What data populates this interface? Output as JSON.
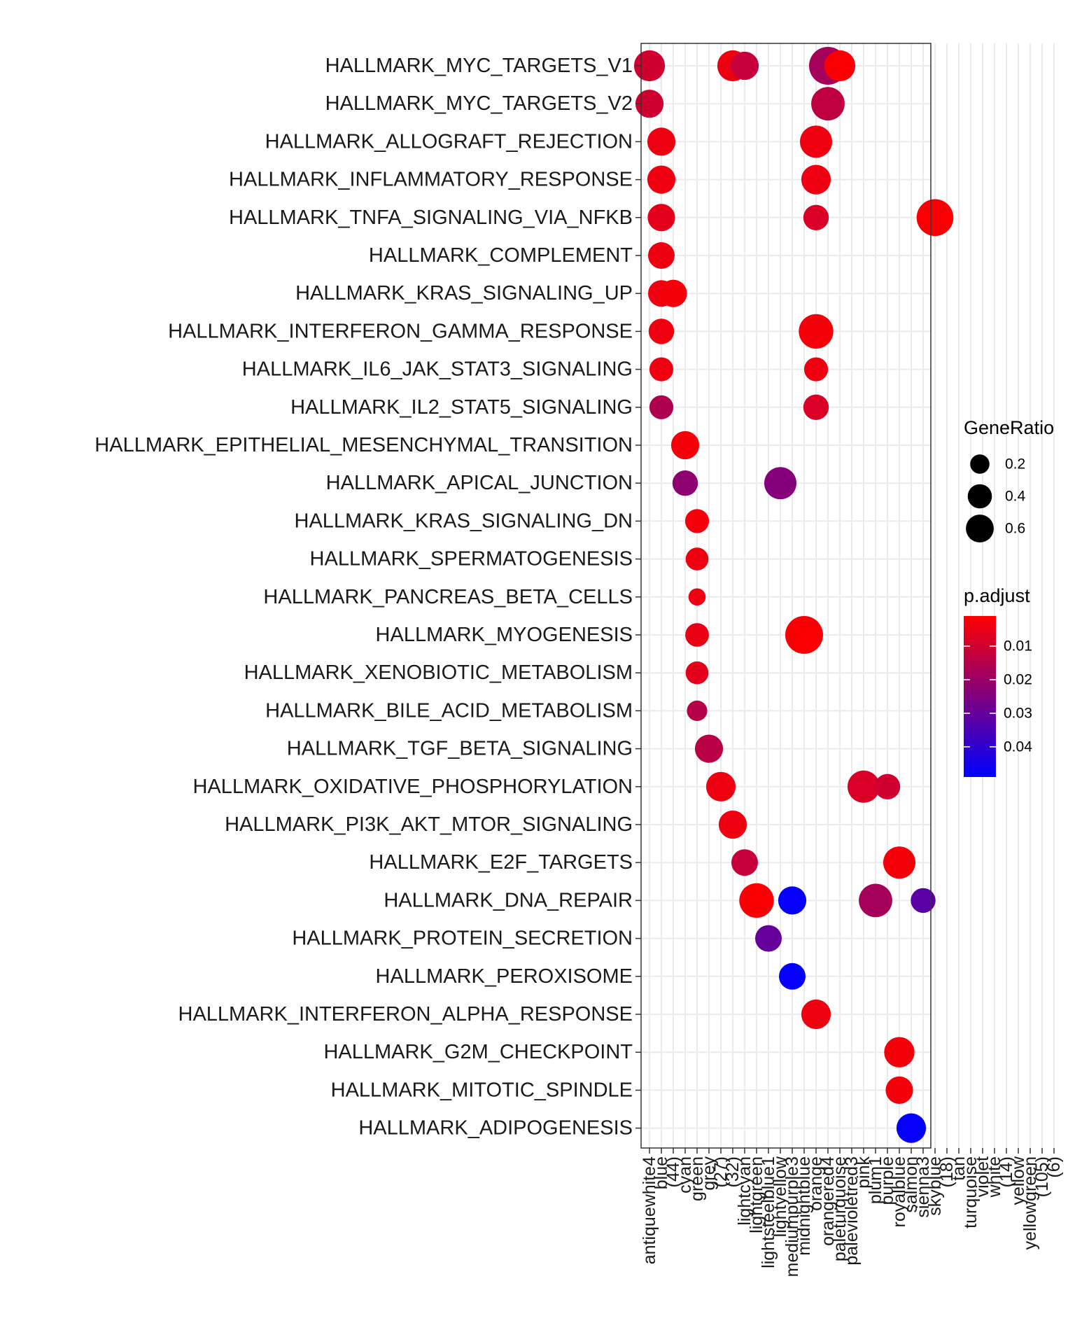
{
  "chart_data": {
    "type": "scatter",
    "title": "",
    "xlabel": "",
    "ylabel": "",
    "grid": true,
    "legend_position": "right",
    "x_categories": [
      "antiquewhite4",
      "blue",
      "(44)",
      "cyan",
      "green",
      "grey",
      "(27)",
      "(32)",
      "lightcyan",
      "lightgreen",
      "lightsteelblue1",
      "lightyellow",
      "mediumpurple3",
      "midnightblue",
      "orange",
      "orangered4",
      "paleturquoise",
      "palevioletred3",
      "pink",
      "plum1",
      "purple",
      "royalblue",
      "salmon",
      "sienna3",
      "skyblue",
      "(18)",
      "tan",
      "turquoise",
      "violet",
      "white",
      "(14)",
      "yellow",
      "yellowgreen",
      "(105)",
      "(6)"
    ],
    "y_categories": [
      "HALLMARK_MYC_TARGETS_V1",
      "HALLMARK_MYC_TARGETS_V2",
      "HALLMARK_ALLOGRAFT_REJECTION",
      "HALLMARK_INFLAMMATORY_RESPONSE",
      "HALLMARK_TNFA_SIGNALING_VIA_NFKB",
      "HALLMARK_COMPLEMENT",
      "HALLMARK_KRAS_SIGNALING_UP",
      "HALLMARK_INTERFERON_GAMMA_RESPONSE",
      "HALLMARK_IL6_JAK_STAT3_SIGNALING",
      "HALLMARK_IL2_STAT5_SIGNALING",
      "HALLMARK_EPITHELIAL_MESENCHYMAL_TRANSITION",
      "HALLMARK_APICAL_JUNCTION",
      "HALLMARK_KRAS_SIGNALING_DN",
      "HALLMARK_SPERMATOGENESIS",
      "HALLMARK_PANCREAS_BETA_CELLS",
      "HALLMARK_MYOGENESIS",
      "HALLMARK_XENOBIOTIC_METABOLISM",
      "HALLMARK_BILE_ACID_METABOLISM",
      "HALLMARK_TGF_BETA_SIGNALING",
      "HALLMARK_OXIDATIVE_PHOSPHORYLATION",
      "HALLMARK_PI3K_AKT_MTOR_SIGNALING",
      "HALLMARK_E2F_TARGETS",
      "HALLMARK_DNA_REPAIR",
      "HALLMARK_PROTEIN_SECRETION",
      "HALLMARK_PEROXISOME",
      "HALLMARK_INTERFERON_ALPHA_RESPONSE",
      "HALLMARK_G2M_CHECKPOINT",
      "HALLMARK_MITOTIC_SPINDLE",
      "HALLMARK_ADIPOGENESIS"
    ],
    "points": [
      {
        "x": 0,
        "y": 0,
        "ratio": 0.4,
        "padj": 0.01
      },
      {
        "x": 7,
        "y": 0,
        "ratio": 0.4,
        "padj": 0.004
      },
      {
        "x": 8,
        "y": 0,
        "ratio": 0.3,
        "padj": 0.012
      },
      {
        "x": 15,
        "y": 0,
        "ratio": 0.7,
        "padj": 0.018
      },
      {
        "x": 16,
        "y": 0,
        "ratio": 0.4,
        "padj": 0.002
      },
      {
        "x": 0,
        "y": 1,
        "ratio": 0.3,
        "padj": 0.01
      },
      {
        "x": 15,
        "y": 1,
        "ratio": 0.5,
        "padj": 0.013
      },
      {
        "x": 1,
        "y": 2,
        "ratio": 0.3,
        "padj": 0.004
      },
      {
        "x": 14,
        "y": 2,
        "ratio": 0.45,
        "padj": 0.004
      },
      {
        "x": 1,
        "y": 3,
        "ratio": 0.3,
        "padj": 0.004
      },
      {
        "x": 14,
        "y": 3,
        "ratio": 0.35,
        "padj": 0.004
      },
      {
        "x": 1,
        "y": 4,
        "ratio": 0.28,
        "padj": 0.006
      },
      {
        "x": 14,
        "y": 4,
        "ratio": 0.22,
        "padj": 0.008
      },
      {
        "x": 24,
        "y": 4,
        "ratio": 0.65,
        "padj": 0.002
      },
      {
        "x": 1,
        "y": 5,
        "ratio": 0.25,
        "padj": 0.004
      },
      {
        "x": 1,
        "y": 6,
        "ratio": 0.25,
        "padj": 0.004
      },
      {
        "x": 2,
        "y": 6,
        "ratio": 0.28,
        "padj": 0.003
      },
      {
        "x": 1,
        "y": 7,
        "ratio": 0.22,
        "padj": 0.004
      },
      {
        "x": 14,
        "y": 7,
        "ratio": 0.55,
        "padj": 0.003
      },
      {
        "x": 1,
        "y": 8,
        "ratio": 0.18,
        "padj": 0.004
      },
      {
        "x": 14,
        "y": 8,
        "ratio": 0.18,
        "padj": 0.004
      },
      {
        "x": 1,
        "y": 9,
        "ratio": 0.18,
        "padj": 0.016
      },
      {
        "x": 14,
        "y": 9,
        "ratio": 0.22,
        "padj": 0.008
      },
      {
        "x": 3,
        "y": 10,
        "ratio": 0.3,
        "padj": 0.003
      },
      {
        "x": 3,
        "y": 11,
        "ratio": 0.22,
        "padj": 0.022
      },
      {
        "x": 11,
        "y": 11,
        "ratio": 0.45,
        "padj": 0.024
      },
      {
        "x": 4,
        "y": 12,
        "ratio": 0.18,
        "padj": 0.003
      },
      {
        "x": 4,
        "y": 13,
        "ratio": 0.15,
        "padj": 0.004
      },
      {
        "x": 4,
        "y": 14,
        "ratio": 0.05,
        "padj": 0.004
      },
      {
        "x": 4,
        "y": 15,
        "ratio": 0.17,
        "padj": 0.005
      },
      {
        "x": 13,
        "y": 15,
        "ratio": 0.7,
        "padj": 0.002
      },
      {
        "x": 4,
        "y": 16,
        "ratio": 0.15,
        "padj": 0.006
      },
      {
        "x": 4,
        "y": 17,
        "ratio": 0.1,
        "padj": 0.015
      },
      {
        "x": 5,
        "y": 18,
        "ratio": 0.3,
        "padj": 0.014
      },
      {
        "x": 6,
        "y": 19,
        "ratio": 0.35,
        "padj": 0.004
      },
      {
        "x": 18,
        "y": 19,
        "ratio": 0.45,
        "padj": 0.008
      },
      {
        "x": 20,
        "y": 19,
        "ratio": 0.22,
        "padj": 0.01
      },
      {
        "x": 7,
        "y": 20,
        "ratio": 0.3,
        "padj": 0.004
      },
      {
        "x": 8,
        "y": 21,
        "ratio": 0.25,
        "padj": 0.012
      },
      {
        "x": 21,
        "y": 21,
        "ratio": 0.45,
        "padj": 0.003
      },
      {
        "x": 9,
        "y": 22,
        "ratio": 0.55,
        "padj": 0.002
      },
      {
        "x": 12,
        "y": 22,
        "ratio": 0.3,
        "padj": 0.048
      },
      {
        "x": 19,
        "y": 22,
        "ratio": 0.5,
        "padj": 0.018
      },
      {
        "x": 23,
        "y": 22,
        "ratio": 0.2,
        "padj": 0.032
      },
      {
        "x": 10,
        "y": 23,
        "ratio": 0.25,
        "padj": 0.03
      },
      {
        "x": 12,
        "y": 24,
        "ratio": 0.25,
        "padj": 0.048
      },
      {
        "x": 14,
        "y": 25,
        "ratio": 0.35,
        "padj": 0.004
      },
      {
        "x": 21,
        "y": 26,
        "ratio": 0.38,
        "padj": 0.003
      },
      {
        "x": 21,
        "y": 27,
        "ratio": 0.28,
        "padj": 0.003
      },
      {
        "x": 22,
        "y": 28,
        "ratio": 0.35,
        "padj": 0.048
      }
    ],
    "size_legend": {
      "title": "GeneRatio",
      "labels": [
        "0.2",
        "0.4",
        "0.6"
      ],
      "values": [
        0.2,
        0.4,
        0.6
      ]
    },
    "color_legend": {
      "title": "p.adjust",
      "labels": [
        "0.01",
        "0.02",
        "0.03",
        "0.04"
      ],
      "values": [
        0.01,
        0.02,
        0.03,
        0.04
      ],
      "range": [
        0.001,
        0.049
      ],
      "low_color": "#ff0000",
      "high_color": "#0000ff"
    },
    "colors": {
      "grid": "#ebebeb",
      "panel_border": "#333333",
      "text": "#1a1a1a"
    }
  }
}
